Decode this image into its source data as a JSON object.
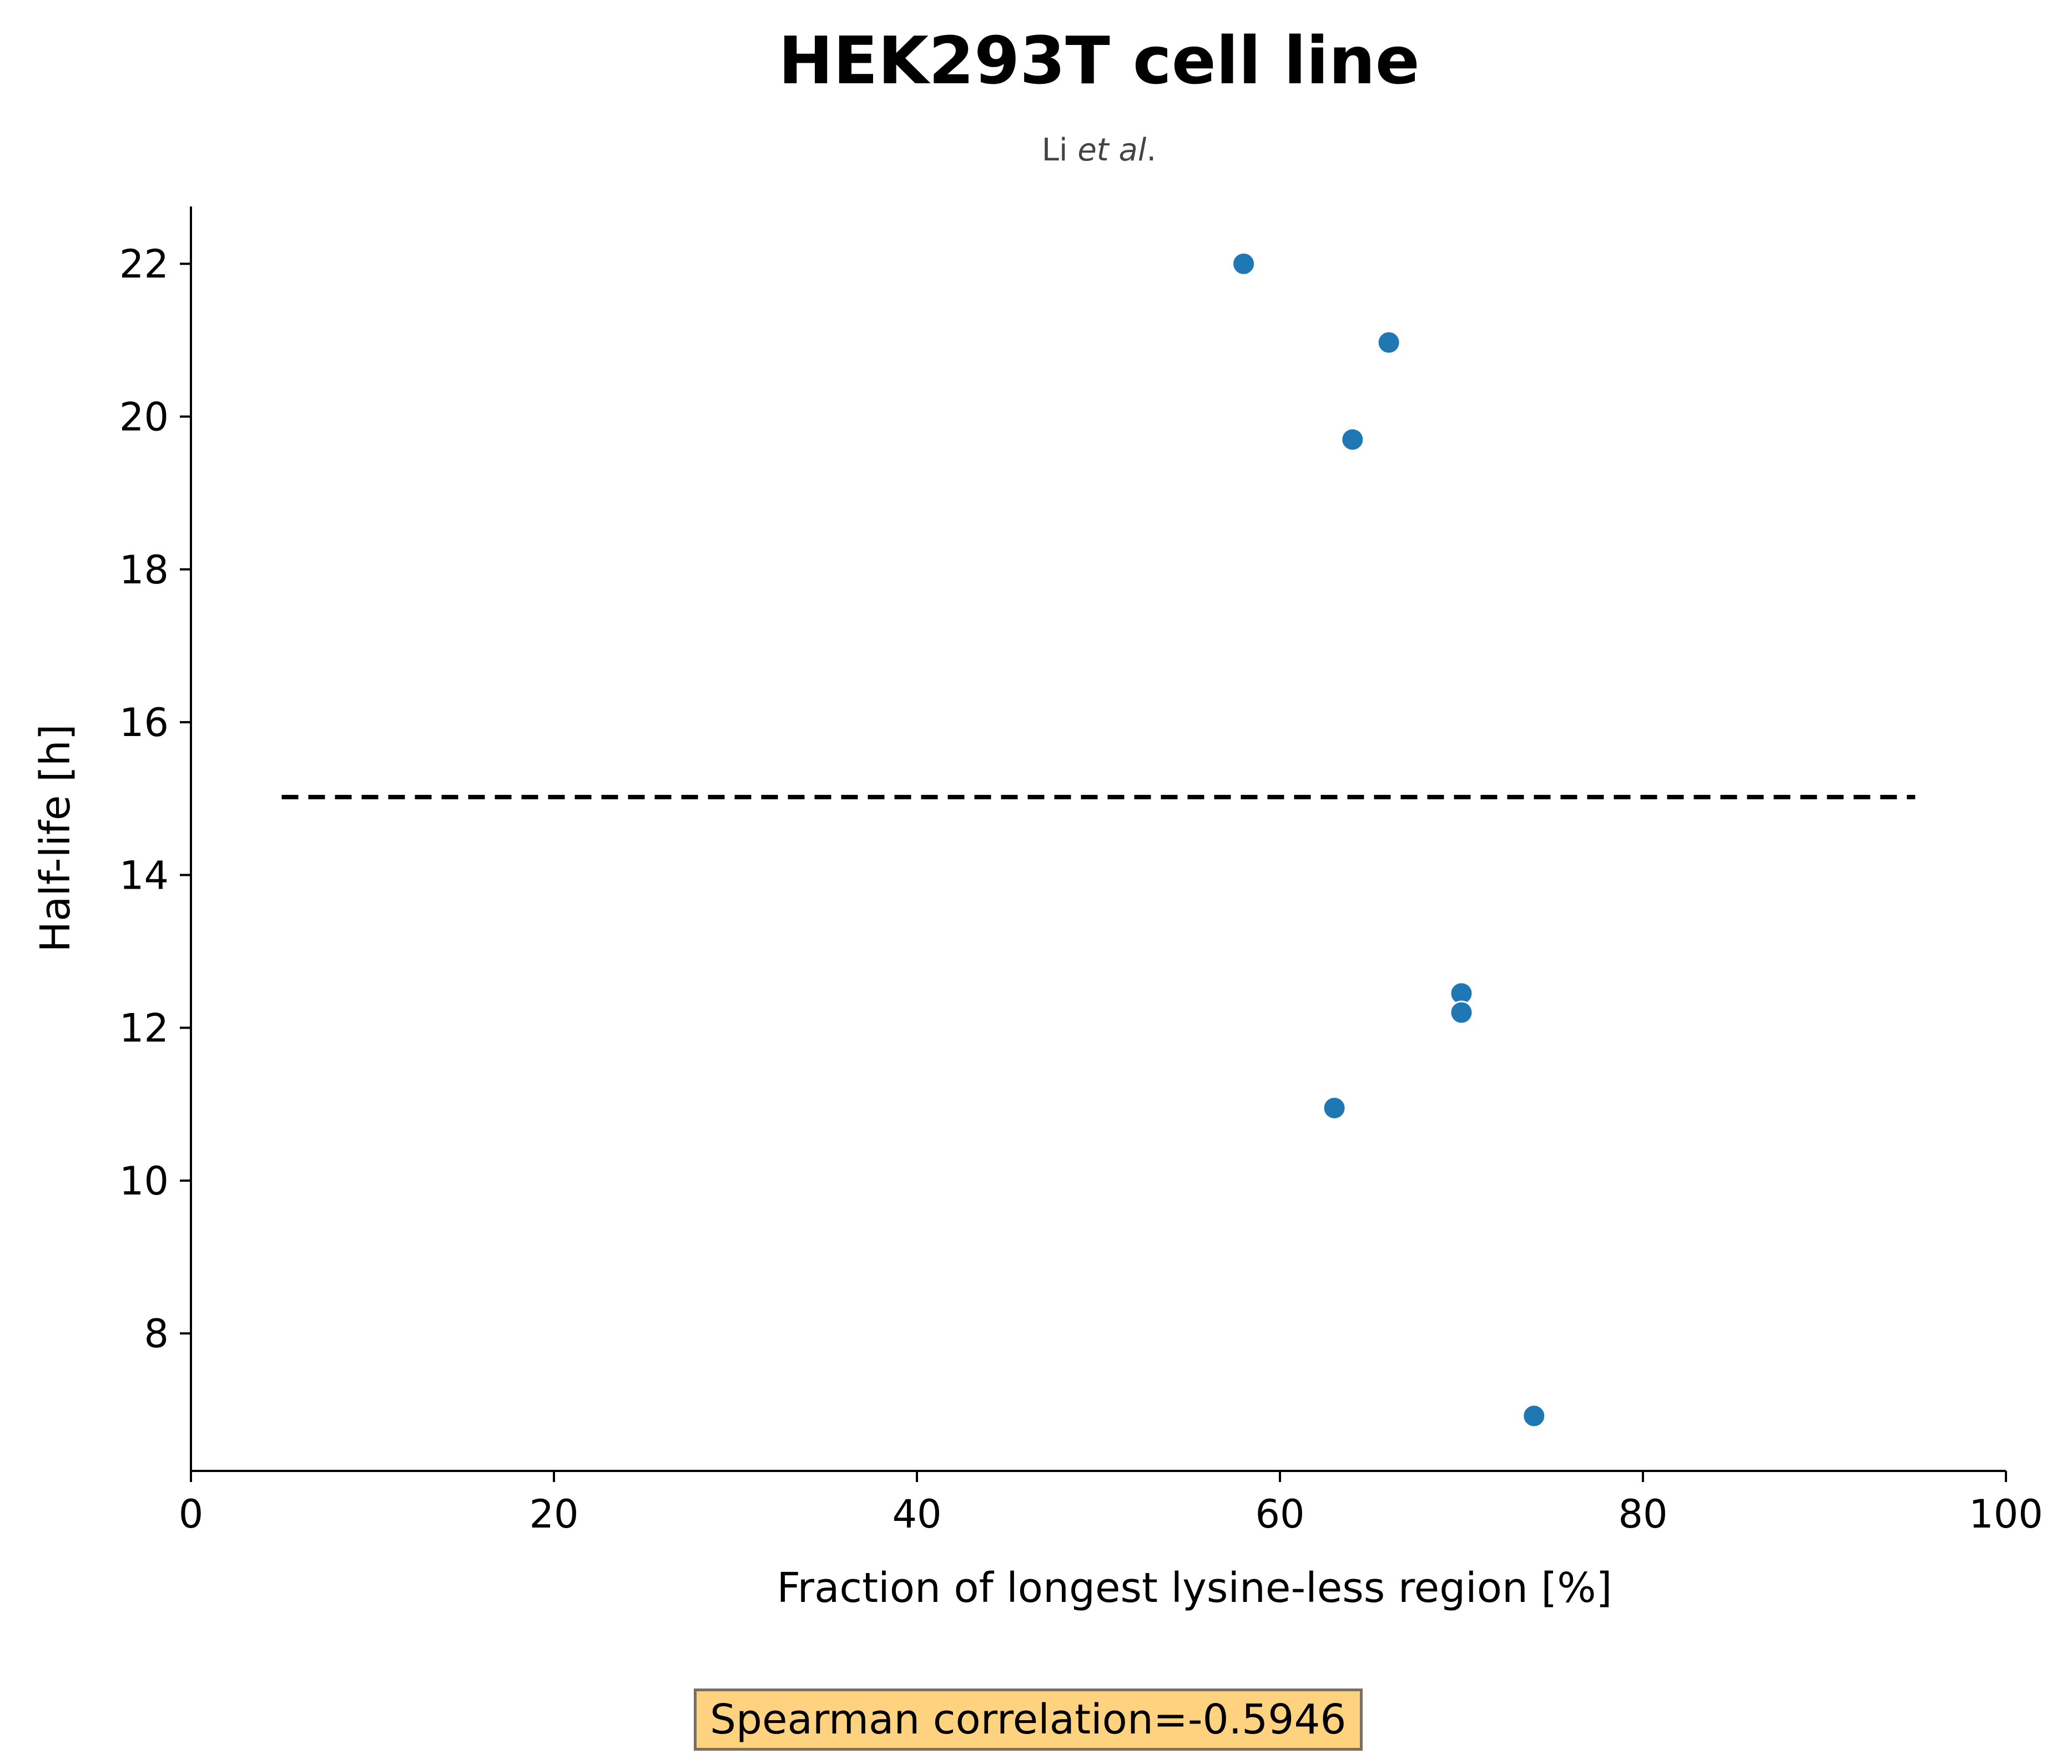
{
  "chart_data": {
    "type": "scatter",
    "title": "HEK293T cell line",
    "subtitle_prefix": "Li ",
    "subtitle_italic": "et al",
    "subtitle_suffix": ".",
    "xlabel": "Fraction of longest lysine-less region [%]",
    "ylabel": "Half-life [h]",
    "xlim": [
      0,
      100
    ],
    "ylim": [
      6.2,
      22.75
    ],
    "xticks": [
      0,
      20,
      40,
      60,
      80,
      100
    ],
    "yticks": [
      8,
      10,
      12,
      14,
      16,
      18,
      20,
      22
    ],
    "grid": false,
    "points": [
      {
        "x": 58,
        "y": 22.0
      },
      {
        "x": 66,
        "y": 20.97
      },
      {
        "x": 64,
        "y": 19.7
      },
      {
        "x": 70,
        "y": 12.45
      },
      {
        "x": 70,
        "y": 12.2
      },
      {
        "x": 63,
        "y": 10.95
      },
      {
        "x": 74,
        "y": 6.92
      }
    ],
    "reference_line": {
      "y": 15.02,
      "x_start": 5,
      "x_end": 95,
      "style": "dashed",
      "color": "#000000"
    },
    "point_color": "#1f77b4",
    "annotation": "Spearman correlation=-0.5946",
    "annotation_bg": "#ffd27f"
  }
}
